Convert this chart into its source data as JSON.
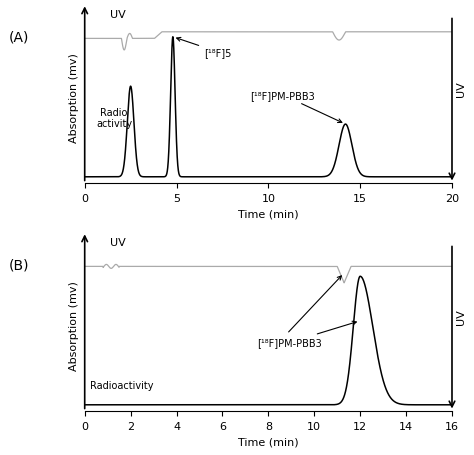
{
  "panel_A": {
    "xlim": [
      0,
      20
    ],
    "xticks": [
      0,
      5,
      10,
      15,
      20
    ],
    "ylabel": "Absorption (mv)",
    "xlabel": "Time (min)",
    "label_A": "(A)",
    "uv_label": "UV",
    "uv_label_right": "UV",
    "radioactivity_label": "Radio\nactivity",
    "annotation1": "[¹⁸F]5",
    "annotation2": "[¹⁸F]PM-PBB3"
  },
  "panel_B": {
    "xlim": [
      0,
      16
    ],
    "xticks": [
      0,
      2,
      4,
      6,
      8,
      10,
      12,
      14,
      16
    ],
    "ylabel": "Absorption (mv)",
    "xlabel": "Time (min)",
    "label_B": "(B)",
    "uv_label": "UV",
    "uv_label_right": "UV",
    "radioactivity_label": "Radioactivity",
    "annotation1": "[¹⁸F]PM-PBB3"
  },
  "fig_bg": "#ffffff",
  "axes_bg": "#ffffff",
  "uv_color": "#aaaaaa",
  "radio_color": "#000000"
}
